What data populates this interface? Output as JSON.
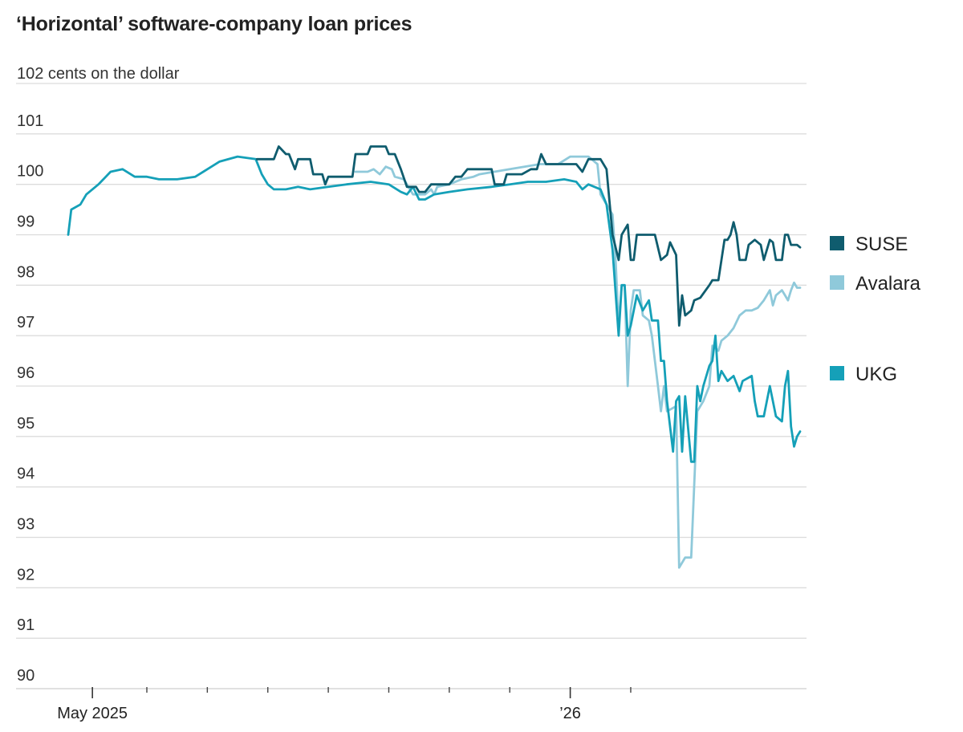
{
  "chart_data": {
    "type": "line",
    "title": "‘Horizontal’ software-company loan prices",
    "ylabel_unit": "cents on the dollar",
    "ylim": [
      90,
      102
    ],
    "yticks": [
      90,
      91,
      92,
      93,
      94,
      95,
      96,
      97,
      98,
      99,
      100,
      101,
      102
    ],
    "xticks": [
      {
        "t": 0.1,
        "label": "May 2025"
      },
      {
        "t": 8.0,
        "label": "’26"
      }
    ],
    "minor_ticks": [
      1,
      2,
      3,
      4,
      5,
      6,
      7,
      9
    ],
    "xlim": [
      -0.3,
      11.8
    ],
    "grid": true,
    "legend_placement": "right",
    "series": [
      {
        "name": "SUSE",
        "color": "#0f5c6e",
        "points": [
          [
            2.82,
            100.5
          ],
          [
            3.0,
            100.5
          ],
          [
            3.1,
            100.5
          ],
          [
            3.18,
            100.75
          ],
          [
            3.3,
            100.6
          ],
          [
            3.35,
            100.6
          ],
          [
            3.45,
            100.3
          ],
          [
            3.5,
            100.5
          ],
          [
            3.7,
            100.5
          ],
          [
            3.75,
            100.2
          ],
          [
            3.9,
            100.2
          ],
          [
            3.95,
            100.0
          ],
          [
            4.0,
            100.15
          ],
          [
            4.4,
            100.15
          ],
          [
            4.45,
            100.6
          ],
          [
            4.65,
            100.6
          ],
          [
            4.7,
            100.75
          ],
          [
            4.95,
            100.75
          ],
          [
            5.0,
            100.6
          ],
          [
            5.1,
            100.6
          ],
          [
            5.2,
            100.3
          ],
          [
            5.3,
            99.95
          ],
          [
            5.45,
            99.95
          ],
          [
            5.5,
            99.85
          ],
          [
            5.6,
            99.85
          ],
          [
            5.7,
            100.0
          ],
          [
            6.0,
            100.0
          ],
          [
            6.1,
            100.15
          ],
          [
            6.2,
            100.15
          ],
          [
            6.3,
            100.3
          ],
          [
            6.7,
            100.3
          ],
          [
            6.75,
            100.0
          ],
          [
            6.9,
            100.0
          ],
          [
            6.95,
            100.2
          ],
          [
            7.2,
            100.2
          ],
          [
            7.35,
            100.3
          ],
          [
            7.45,
            100.3
          ],
          [
            7.52,
            100.6
          ],
          [
            7.6,
            100.4
          ],
          [
            7.95,
            100.4
          ],
          [
            8.1,
            100.4
          ],
          [
            8.2,
            100.25
          ],
          [
            8.3,
            100.5
          ],
          [
            8.5,
            100.5
          ],
          [
            8.6,
            100.3
          ],
          [
            8.7,
            99.0
          ],
          [
            8.8,
            98.5
          ],
          [
            8.85,
            99.0
          ],
          [
            8.95,
            99.2
          ],
          [
            9.0,
            98.5
          ],
          [
            9.05,
            98.5
          ],
          [
            9.1,
            99.0
          ],
          [
            9.4,
            99.0
          ],
          [
            9.5,
            98.5
          ],
          [
            9.6,
            98.6
          ],
          [
            9.65,
            98.85
          ],
          [
            9.75,
            98.6
          ],
          [
            9.8,
            97.2
          ],
          [
            9.85,
            97.8
          ],
          [
            9.9,
            97.4
          ],
          [
            10.0,
            97.5
          ],
          [
            10.05,
            97.7
          ],
          [
            10.15,
            97.75
          ],
          [
            10.3,
            98.0
          ],
          [
            10.35,
            98.1
          ],
          [
            10.45,
            98.1
          ],
          [
            10.5,
            98.5
          ],
          [
            10.55,
            98.9
          ],
          [
            10.6,
            98.9
          ],
          [
            10.65,
            99.0
          ],
          [
            10.7,
            99.25
          ],
          [
            10.75,
            99.0
          ],
          [
            10.8,
            98.5
          ],
          [
            10.9,
            98.5
          ],
          [
            10.95,
            98.8
          ],
          [
            11.05,
            98.9
          ],
          [
            11.15,
            98.8
          ],
          [
            11.2,
            98.5
          ],
          [
            11.3,
            98.9
          ],
          [
            11.35,
            98.85
          ],
          [
            11.4,
            98.5
          ],
          [
            11.5,
            98.5
          ],
          [
            11.55,
            99.0
          ],
          [
            11.6,
            99.0
          ],
          [
            11.65,
            98.8
          ],
          [
            11.75,
            98.8
          ],
          [
            11.8,
            98.75
          ]
        ]
      },
      {
        "name": "Avalara",
        "color": "#8fc9da",
        "points": [
          [
            4.45,
            100.25
          ],
          [
            4.65,
            100.25
          ],
          [
            4.75,
            100.3
          ],
          [
            4.85,
            100.2
          ],
          [
            4.95,
            100.35
          ],
          [
            5.05,
            100.3
          ],
          [
            5.1,
            100.15
          ],
          [
            5.25,
            100.1
          ],
          [
            5.3,
            100.0
          ],
          [
            5.4,
            99.8
          ],
          [
            5.6,
            99.8
          ],
          [
            5.7,
            99.9
          ],
          [
            5.75,
            99.8
          ],
          [
            5.8,
            99.95
          ],
          [
            6.0,
            100.0
          ],
          [
            6.2,
            100.1
          ],
          [
            6.4,
            100.15
          ],
          [
            6.5,
            100.2
          ],
          [
            7.0,
            100.3
          ],
          [
            7.5,
            100.4
          ],
          [
            7.8,
            100.4
          ],
          [
            8.0,
            100.55
          ],
          [
            8.3,
            100.55
          ],
          [
            8.45,
            100.4
          ],
          [
            8.5,
            99.8
          ],
          [
            8.6,
            99.6
          ],
          [
            8.7,
            99.4
          ],
          [
            8.75,
            98.5
          ],
          [
            8.8,
            97.2
          ],
          [
            8.85,
            98.0
          ],
          [
            8.9,
            98.0
          ],
          [
            8.95,
            96.0
          ],
          [
            9.0,
            97.5
          ],
          [
            9.05,
            97.9
          ],
          [
            9.15,
            97.9
          ],
          [
            9.2,
            97.4
          ],
          [
            9.3,
            97.3
          ],
          [
            9.35,
            97.0
          ],
          [
            9.45,
            96.0
          ],
          [
            9.5,
            95.5
          ],
          [
            9.55,
            96.0
          ],
          [
            9.6,
            95.5
          ],
          [
            9.75,
            95.6
          ],
          [
            9.8,
            92.4
          ],
          [
            9.9,
            92.6
          ],
          [
            10.0,
            92.6
          ],
          [
            10.1,
            95.5
          ],
          [
            10.2,
            95.7
          ],
          [
            10.3,
            96.0
          ],
          [
            10.35,
            96.8
          ],
          [
            10.45,
            96.7
          ],
          [
            10.5,
            96.9
          ],
          [
            10.6,
            97.0
          ],
          [
            10.7,
            97.15
          ],
          [
            10.8,
            97.4
          ],
          [
            10.9,
            97.5
          ],
          [
            11.0,
            97.5
          ],
          [
            11.1,
            97.55
          ],
          [
            11.2,
            97.7
          ],
          [
            11.3,
            97.9
          ],
          [
            11.35,
            97.6
          ],
          [
            11.4,
            97.8
          ],
          [
            11.5,
            97.9
          ],
          [
            11.55,
            97.8
          ],
          [
            11.6,
            97.7
          ],
          [
            11.65,
            97.9
          ],
          [
            11.7,
            98.05
          ],
          [
            11.75,
            97.95
          ],
          [
            11.8,
            97.95
          ]
        ]
      },
      {
        "name": "UKG",
        "color": "#15a0b8",
        "points": [
          [
            -0.3,
            99.0
          ],
          [
            -0.25,
            99.5
          ],
          [
            -0.1,
            99.6
          ],
          [
            0.0,
            99.8
          ],
          [
            0.2,
            100.0
          ],
          [
            0.4,
            100.25
          ],
          [
            0.6,
            100.3
          ],
          [
            0.8,
            100.15
          ],
          [
            1.0,
            100.15
          ],
          [
            1.2,
            100.1
          ],
          [
            1.5,
            100.1
          ],
          [
            1.8,
            100.15
          ],
          [
            2.0,
            100.3
          ],
          [
            2.2,
            100.45
          ],
          [
            2.5,
            100.55
          ],
          [
            2.8,
            100.5
          ],
          [
            2.9,
            100.2
          ],
          [
            3.0,
            100.0
          ],
          [
            3.1,
            99.9
          ],
          [
            3.3,
            99.9
          ],
          [
            3.5,
            99.95
          ],
          [
            3.7,
            99.9
          ],
          [
            4.0,
            99.95
          ],
          [
            4.3,
            100.0
          ],
          [
            4.7,
            100.05
          ],
          [
            5.0,
            100.0
          ],
          [
            5.2,
            99.85
          ],
          [
            5.3,
            99.8
          ],
          [
            5.4,
            99.95
          ],
          [
            5.5,
            99.7
          ],
          [
            5.6,
            99.7
          ],
          [
            5.75,
            99.8
          ],
          [
            6.0,
            99.85
          ],
          [
            6.3,
            99.9
          ],
          [
            6.7,
            99.95
          ],
          [
            7.0,
            100.0
          ],
          [
            7.3,
            100.05
          ],
          [
            7.6,
            100.05
          ],
          [
            7.9,
            100.1
          ],
          [
            8.1,
            100.05
          ],
          [
            8.2,
            99.9
          ],
          [
            8.3,
            100.0
          ],
          [
            8.5,
            99.9
          ],
          [
            8.6,
            99.6
          ],
          [
            8.7,
            98.7
          ],
          [
            8.8,
            97.0
          ],
          [
            8.85,
            98.0
          ],
          [
            8.9,
            98.0
          ],
          [
            8.95,
            97.0
          ],
          [
            9.0,
            97.2
          ],
          [
            9.1,
            97.8
          ],
          [
            9.2,
            97.5
          ],
          [
            9.3,
            97.7
          ],
          [
            9.35,
            97.3
          ],
          [
            9.45,
            97.3
          ],
          [
            9.5,
            96.5
          ],
          [
            9.55,
            96.5
          ],
          [
            9.6,
            95.7
          ],
          [
            9.7,
            94.7
          ],
          [
            9.75,
            95.7
          ],
          [
            9.8,
            95.8
          ],
          [
            9.85,
            94.7
          ],
          [
            9.9,
            95.8
          ],
          [
            10.0,
            94.5
          ],
          [
            10.05,
            94.5
          ],
          [
            10.1,
            96.0
          ],
          [
            10.15,
            95.7
          ],
          [
            10.2,
            96.0
          ],
          [
            10.3,
            96.4
          ],
          [
            10.35,
            96.5
          ],
          [
            10.4,
            97.0
          ],
          [
            10.45,
            96.1
          ],
          [
            10.5,
            96.3
          ],
          [
            10.6,
            96.1
          ],
          [
            10.7,
            96.2
          ],
          [
            10.8,
            95.9
          ],
          [
            10.85,
            96.1
          ],
          [
            11.0,
            96.2
          ],
          [
            11.05,
            95.7
          ],
          [
            11.1,
            95.4
          ],
          [
            11.2,
            95.4
          ],
          [
            11.3,
            96.0
          ],
          [
            11.35,
            95.7
          ],
          [
            11.4,
            95.4
          ],
          [
            11.5,
            95.3
          ],
          [
            11.55,
            96.0
          ],
          [
            11.6,
            96.3
          ],
          [
            11.65,
            95.2
          ],
          [
            11.7,
            94.8
          ],
          [
            11.75,
            95.0
          ],
          [
            11.8,
            95.1
          ]
        ]
      }
    ],
    "legend": [
      {
        "name": "SUSE",
        "color": "#0f5c6e"
      },
      {
        "name": "Avalara",
        "color": "#8fc9da"
      },
      {
        "name": "UKG",
        "color": "#15a0b8"
      }
    ]
  }
}
